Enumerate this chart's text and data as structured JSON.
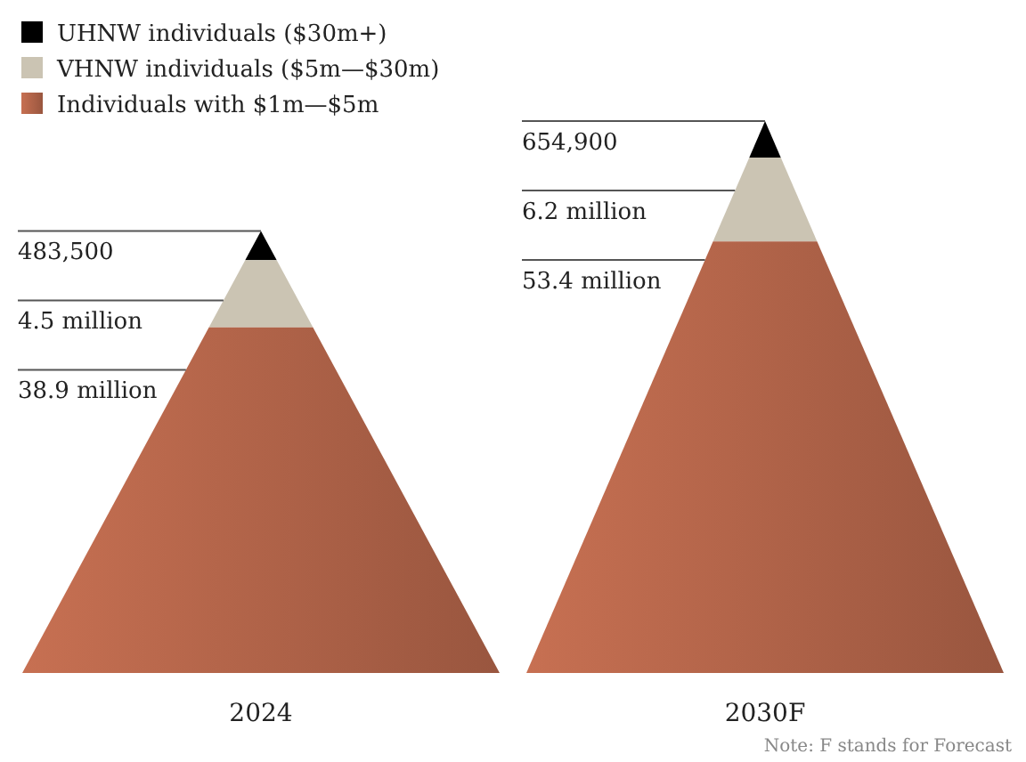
{
  "chart_data": {
    "type": "other",
    "categories": [
      "2024",
      "2030F"
    ],
    "series": [
      {
        "name": "UHNW individuals ($30m+)",
        "color": "#000000",
        "values": [
          483500,
          654900
        ],
        "value_labels": [
          "483,500",
          "654,900"
        ]
      },
      {
        "name": "VHNW individuals ($5m—$30m)",
        "color": "#cbc4b3",
        "values": [
          4500000,
          6200000
        ],
        "value_labels": [
          "4.5 million",
          "6.2 million"
        ]
      },
      {
        "name": "Individuals with $1m—$5m",
        "color": "#bd6a4e",
        "values": [
          38900000,
          53400000
        ],
        "value_labels": [
          "38.9 million",
          "53.4 million"
        ]
      }
    ],
    "legend": "top left",
    "annotations": [
      "Note: F stands for Forecast"
    ]
  }
}
